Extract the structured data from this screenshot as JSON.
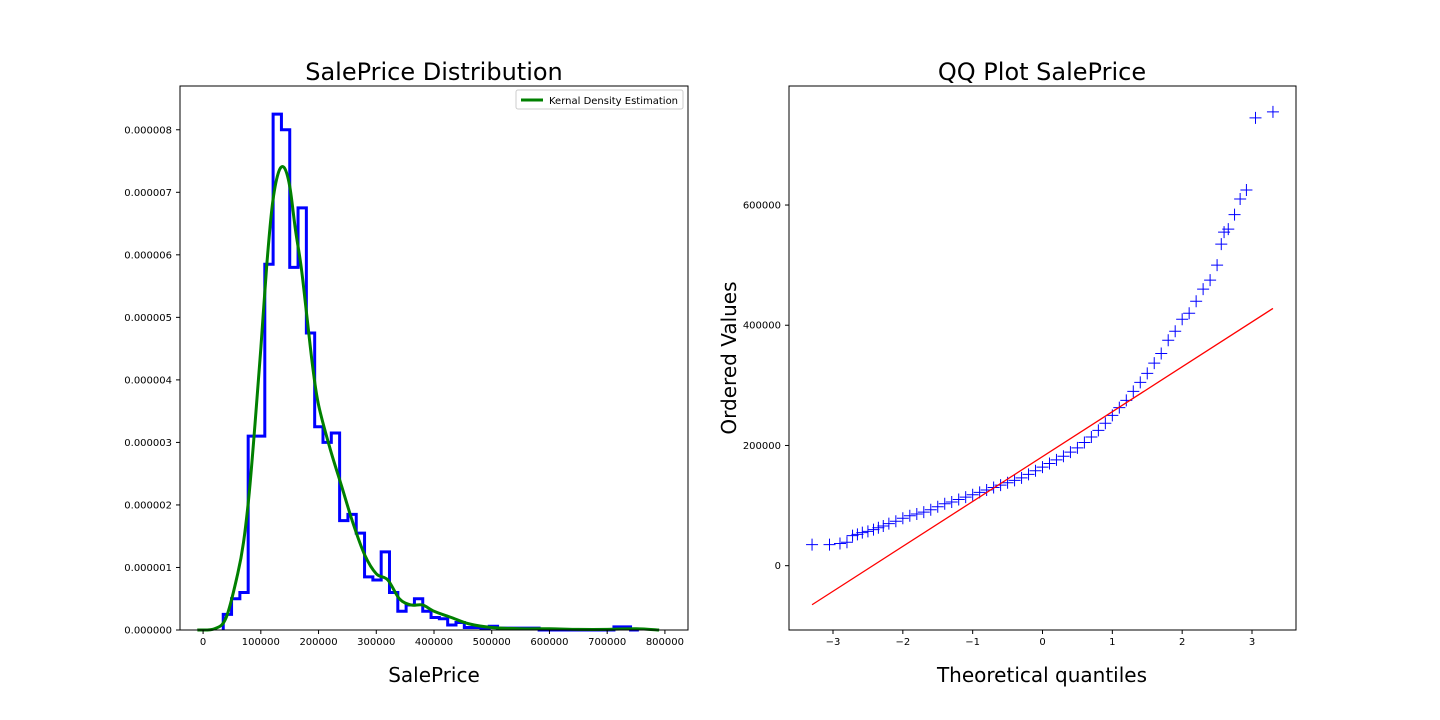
{
  "chart_data": [
    {
      "type": "histogram",
      "title": "SalePrice Distribution",
      "xlabel": "SalePrice",
      "ylabel": "",
      "xlim": [
        -40000,
        840000
      ],
      "ylim": [
        0,
        8.7e-06
      ],
      "xticks": [
        0,
        100000,
        200000,
        300000,
        400000,
        500000,
        600000,
        700000,
        800000
      ],
      "xtick_labels": [
        "0",
        "100000",
        "200000",
        "300000",
        "400000",
        "500000",
        "600000",
        "700000",
        "800000"
      ],
      "yticks": [
        0,
        1e-06,
        2e-06,
        3e-06,
        4e-06,
        5e-06,
        6e-06,
        7e-06,
        8e-06
      ],
      "ytick_labels": [
        "0.000000",
        "0.000001",
        "0.000002",
        "0.000003",
        "0.000004",
        "0.000005",
        "0.000006",
        "0.000007",
        "0.000008"
      ],
      "grid": false,
      "legend": {
        "placement": "top-right",
        "entries": [
          "Kernal Density Estimation"
        ]
      },
      "series": [
        {
          "name": "",
          "kind": "step-histogram",
          "color": "#0000ff",
          "bin_edges": [
            34900,
            49300,
            63700,
            78100,
            92500,
            106900,
            121300,
            135700,
            150100,
            164500,
            178900,
            193300,
            207700,
            222100,
            236500,
            250900,
            265300,
            279700,
            294100,
            308500,
            322900,
            337300,
            351700,
            366100,
            380500,
            394900,
            409300,
            423700,
            438100,
            452500,
            466900,
            481300,
            495700,
            510100,
            524500,
            538900,
            553300,
            567700,
            582100,
            596500,
            610900,
            625300,
            639700,
            654100,
            668500,
            682900,
            697300,
            711700,
            726100,
            740500,
            754900
          ],
          "density": [
            2.5e-07,
            5e-07,
            6e-07,
            3.1e-06,
            3.1e-06,
            5.85e-06,
            8.25e-06,
            8e-06,
            5.8e-06,
            6.75e-06,
            4.75e-06,
            3.25e-06,
            3e-06,
            3.15e-06,
            1.75e-06,
            1.85e-06,
            1.55e-06,
            8.5e-07,
            8e-07,
            1.25e-06,
            6e-07,
            3e-07,
            4e-07,
            5e-07,
            3e-07,
            2e-07,
            1.8e-07,
            8e-08,
            1.2e-07,
            4e-08,
            4e-08,
            3e-08,
            6e-08,
            3e-08,
            3e-08,
            3e-08,
            3e-08,
            3e-08,
            0,
            0,
            0,
            0,
            0,
            0,
            0,
            0,
            0,
            5e-08,
            5e-08,
            0
          ]
        },
        {
          "name": "Kernal Density Estimation",
          "kind": "line",
          "color": "#008000",
          "x": [
            -10000,
            20000,
            40000,
            60000,
            70000,
            80000,
            90000,
            100000,
            110000,
            120000,
            130000,
            140000,
            150000,
            160000,
            170000,
            180000,
            190000,
            200000,
            220000,
            240000,
            260000,
            280000,
            300000,
            320000,
            340000,
            360000,
            380000,
            400000,
            430000,
            460000,
            500000,
            550000,
            600000,
            650000,
            700000,
            750000,
            790000
          ],
          "y": [
            0,
            2e-08,
            2e-07,
            9e-07,
            1.4e-06,
            2.2e-06,
            3.3e-06,
            4.5e-06,
            5.8e-06,
            6.8e-06,
            7.3e-06,
            7.4e-06,
            7.1e-06,
            6.4e-06,
            5.8e-06,
            5e-06,
            4.2e-06,
            3.6e-06,
            2.9e-06,
            2.3e-06,
            1.7e-06,
            1.2e-06,
            9e-07,
            8e-07,
            5e-07,
            4e-07,
            4e-07,
            3e-07,
            2e-07,
            1e-07,
            4e-08,
            2e-08,
            2e-08,
            1e-08,
            1e-08,
            2e-08,
            0
          ]
        }
      ]
    },
    {
      "type": "scatter",
      "title": "QQ Plot SalePrice",
      "xlabel": "Theoretical quantiles",
      "ylabel": "Ordered Values",
      "xlim": [
        -3.63,
        3.63
      ],
      "ylim": [
        -107000,
        798000
      ],
      "xticks": [
        -3,
        -2,
        -1,
        0,
        1,
        2,
        3
      ],
      "xtick_labels": [
        "−3",
        "−2",
        "−1",
        "0",
        "1",
        "2",
        "3"
      ],
      "yticks": [
        0,
        200000,
        400000,
        600000
      ],
      "ytick_labels": [
        "0",
        "200000",
        "400000",
        "600000"
      ],
      "grid": false,
      "series": [
        {
          "name": "",
          "kind": "points",
          "marker": "+",
          "color": "#0000ff",
          "x": [
            -3.3,
            -3.05,
            -2.9,
            -2.8,
            -2.72,
            -2.65,
            -2.58,
            -2.5,
            -2.42,
            -2.35,
            -2.28,
            -2.2,
            -2.1,
            -2.0,
            -1.9,
            -1.8,
            -1.7,
            -1.6,
            -1.5,
            -1.4,
            -1.3,
            -1.2,
            -1.1,
            -1.0,
            -0.9,
            -0.8,
            -0.7,
            -0.6,
            -0.5,
            -0.4,
            -0.3,
            -0.2,
            -0.1,
            0.0,
            0.1,
            0.2,
            0.3,
            0.4,
            0.5,
            0.6,
            0.7,
            0.8,
            0.9,
            1.0,
            1.1,
            1.2,
            1.3,
            1.4,
            1.5,
            1.6,
            1.7,
            1.8,
            1.9,
            2.0,
            2.1,
            2.2,
            2.3,
            2.4,
            2.5,
            2.56,
            2.6,
            2.66,
            2.75,
            2.83,
            2.92,
            3.05,
            3.3
          ],
          "y": [
            35000,
            35000,
            37000,
            39000,
            50000,
            52000,
            55000,
            57000,
            60000,
            63000,
            66000,
            70000,
            74000,
            79000,
            83000,
            86000,
            89000,
            93000,
            98000,
            103000,
            106000,
            110000,
            114000,
            118000,
            122000,
            126000,
            130000,
            134000,
            138000,
            142000,
            146000,
            152000,
            158000,
            164000,
            170000,
            176000,
            182000,
            189000,
            196000,
            205000,
            214000,
            225000,
            237000,
            250000,
            263000,
            275000,
            290000,
            305000,
            320000,
            337000,
            353000,
            375000,
            390000,
            410000,
            420000,
            440000,
            460000,
            475000,
            500000,
            535000,
            555000,
            560000,
            584000,
            610000,
            625000,
            745000,
            755000
          ]
        },
        {
          "name": "",
          "kind": "fit-line",
          "color": "#ff0000",
          "x": [
            -3.3,
            3.3
          ],
          "y": [
            -65000,
            428000
          ]
        }
      ]
    }
  ]
}
